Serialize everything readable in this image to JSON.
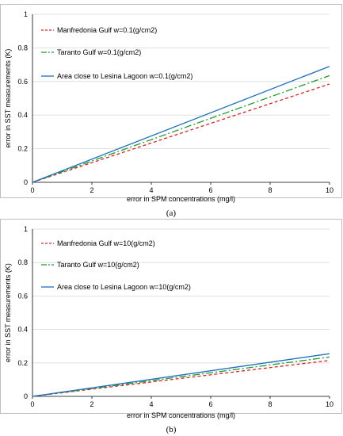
{
  "colors": {
    "manfredonia": "#e02020",
    "taranto": "#1a9f2a",
    "lesina": "#1f6fbf"
  },
  "chart_data": [
    {
      "panel_label": "(a)",
      "type": "line",
      "xlabel": "error in SPM concentrations (mg/l)",
      "ylabel": "error in SST measurements (K)",
      "xlim": [
        0,
        10
      ],
      "ylim": [
        0,
        1
      ],
      "xticks": [
        "0",
        "2",
        "4",
        "6",
        "8",
        "10"
      ],
      "yticks": [
        "0",
        "0.2",
        "0.4",
        "0.6",
        "0.8",
        "1"
      ],
      "grid": "horizontal",
      "legend_position": "top-left",
      "series": [
        {
          "name": "Manfredonia Gulf  w=0.1(g/cm2)",
          "x": [
            0,
            10
          ],
          "y": [
            0,
            0.585
          ],
          "style": "dashed",
          "color_key": "manfredonia"
        },
        {
          "name": "Taranto Gulf w=0.1(g/cm2)",
          "x": [
            0,
            10
          ],
          "y": [
            0,
            0.635
          ],
          "style": "dashdot",
          "color_key": "taranto"
        },
        {
          "name": "Area close to Lesina Lagoon w=0.1(g/cm2)",
          "x": [
            0,
            10
          ],
          "y": [
            0,
            0.69
          ],
          "style": "solid",
          "color_key": "lesina"
        }
      ]
    },
    {
      "panel_label": "(b)",
      "type": "line",
      "xlabel": "error in SPM concentrations (mg/l)",
      "ylabel": "error in SST measurements (K)",
      "xlim": [
        0,
        10
      ],
      "ylim": [
        0,
        1
      ],
      "xticks": [
        "0",
        "2",
        "4",
        "6",
        "8",
        "10"
      ],
      "yticks": [
        "0",
        "0.2",
        "0.4",
        "0.6",
        "0.8",
        "1"
      ],
      "grid": "horizontal",
      "legend_position": "top-left",
      "series": [
        {
          "name": "Manfredonia Gulf w=10(g/cm2)",
          "x": [
            0,
            10
          ],
          "y": [
            0,
            0.215
          ],
          "style": "dashed",
          "color_key": "manfredonia"
        },
        {
          "name": "Taranto Gulf w=10(g/cm2)",
          "x": [
            0,
            10
          ],
          "y": [
            0,
            0.235
          ],
          "style": "dashdot",
          "color_key": "taranto"
        },
        {
          "name": "Area close to Lesina Lagoon w=10(g/cm2)",
          "x": [
            0,
            10
          ],
          "y": [
            0,
            0.255
          ],
          "style": "solid",
          "color_key": "lesina"
        }
      ]
    }
  ]
}
